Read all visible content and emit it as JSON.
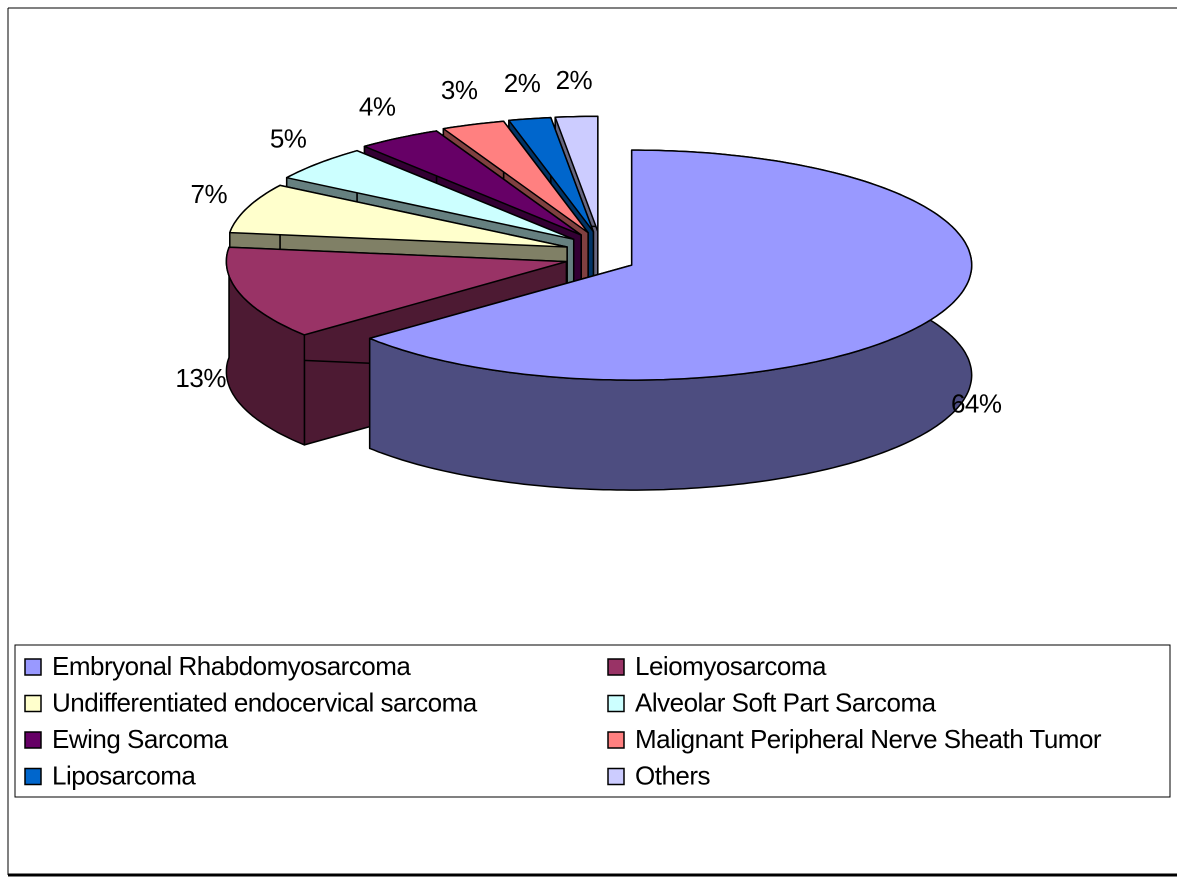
{
  "chart_data": {
    "type": "pie",
    "categories": [
      "Embryonal Rhabdomyosarcoma",
      "Leiomyosarcoma",
      "Undifferentiated endocervical sarcoma",
      "Alveolar Soft Part Sarcoma",
      "Ewing Sarcoma",
      "Malignant Peripheral Nerve Sheath Tumor",
      "Liposarcoma",
      "Others"
    ],
    "values": [
      64,
      13,
      7,
      5,
      4,
      3,
      2,
      2
    ],
    "value_labels": [
      "64%",
      "13%",
      "7%",
      "5%",
      "4%",
      "3%",
      "2%",
      "2%"
    ],
    "colors": [
      "#9999ff",
      "#993366",
      "#ffffcc",
      "#ccffff",
      "#660066",
      "#ff8080",
      "#0066cc",
      "#ccccff"
    ],
    "legend": "bottom"
  }
}
